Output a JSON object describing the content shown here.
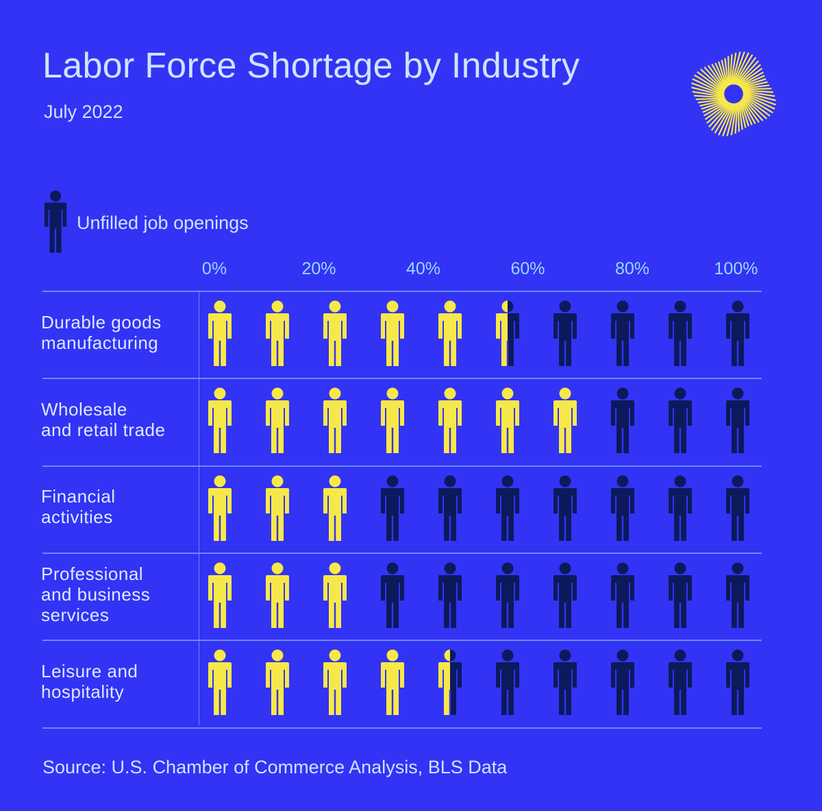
{
  "title": "Labor Force Shortage by Industry",
  "subtitle": "July 2022",
  "legend": {
    "label": "Unfilled job openings"
  },
  "source": "Source: U.S. Chamber of Commerce Analysis, BLS Data",
  "colors": {
    "background": "#3333f5",
    "filled": "#f7e84a",
    "unfilled": "#0c1a5c",
    "text": "#cfe3ff",
    "axis": "#9ad8ff"
  },
  "chart_data": {
    "type": "pictograph",
    "units_per_row": 10,
    "unit_value_percent": 10,
    "axis_ticks": [
      "0%",
      "20%",
      "40%",
      "60%",
      "80%",
      "100%"
    ],
    "series": [
      {
        "name": "Unfilled job openings",
        "color": "#0c1a5c"
      }
    ],
    "categories": [
      {
        "label": "Durable goods\nmanufacturing",
        "filled_percent": 55
      },
      {
        "label": "Wholesale\nand retail trade",
        "filled_percent": 70
      },
      {
        "label": "Financial\nactivities",
        "filled_percent": 30
      },
      {
        "label": "Professional\nand business\nservices",
        "filled_percent": 30
      },
      {
        "label": "Leisure and\nhospitality",
        "filled_percent": 45
      }
    ]
  }
}
